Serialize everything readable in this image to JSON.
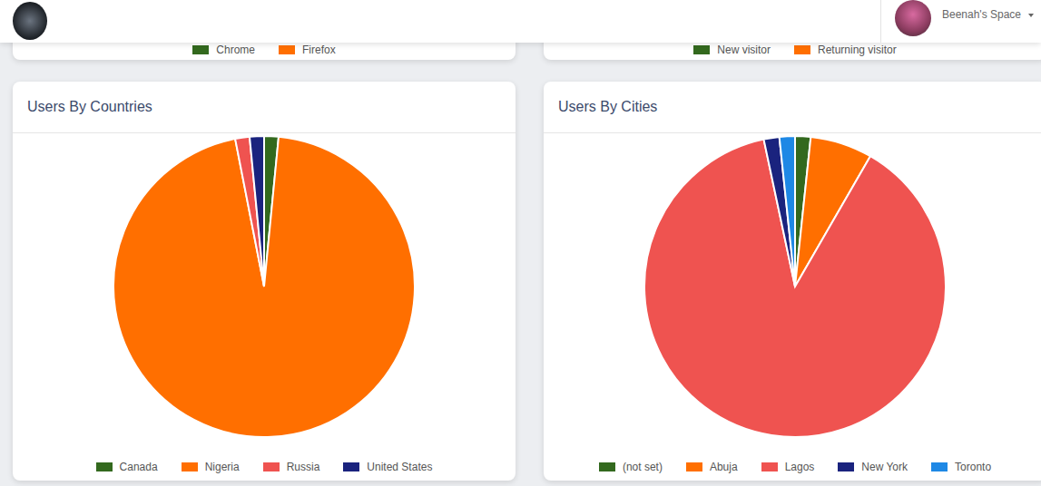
{
  "header": {
    "user": "Beenah's Space"
  },
  "top_cards": [
    {
      "legend": {
        "categories": [
          "Chrome",
          "Firefox"
        ],
        "colors": [
          "#33691e",
          "#ff6f00"
        ]
      }
    },
    {
      "legend": {
        "categories": [
          "New visitor",
          "Returning visitor"
        ],
        "colors": [
          "#33691e",
          "#ff6f00"
        ]
      }
    }
  ],
  "chart_data": [
    {
      "type": "pie",
      "title": "Users By Countries",
      "categories": [
        "Canada",
        "Nigeria",
        "Russia",
        "United States"
      ],
      "values": [
        1,
        62,
        1,
        1
      ],
      "colors": [
        "#33691e",
        "#ff6f00",
        "#ef5350",
        "#1a237e"
      ],
      "legend": "bottom"
    },
    {
      "type": "pie",
      "title": "Users By Cities",
      "categories": [
        "(not set)",
        "Abuja",
        "Lagos",
        "New York",
        "Toronto"
      ],
      "values": [
        1,
        4,
        53,
        1,
        1
      ],
      "colors": [
        "#33691e",
        "#ff6f00",
        "#ef5350",
        "#1a237e",
        "#1e88e5"
      ],
      "legend": "bottom"
    }
  ]
}
